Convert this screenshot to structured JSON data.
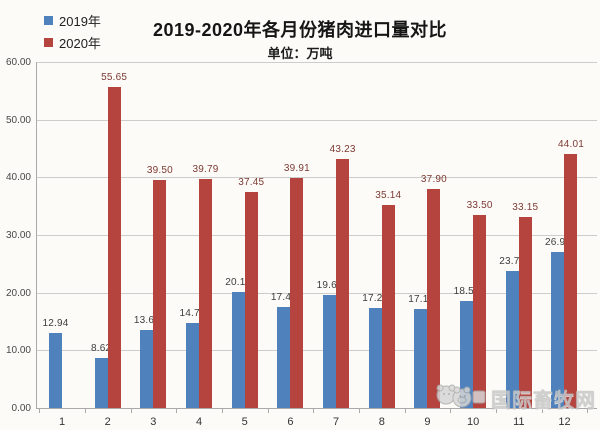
{
  "header": {
    "title": "2019-2020年各月份猪肉进口量对比",
    "subtitle": "单位：万吨"
  },
  "legend": {
    "items": [
      {
        "label": "2019年",
        "color": "#4f81bd"
      },
      {
        "label": "2020年",
        "color": "#b5443f"
      }
    ]
  },
  "watermark": {
    "text": "国际畜牧网"
  },
  "chart_data": {
    "type": "bar",
    "title": "2019-2020年各月份猪肉进口量对比",
    "unit_label": "单位：万吨",
    "categories": [
      "1",
      "2",
      "3",
      "4",
      "5",
      "6",
      "7",
      "8",
      "9",
      "10",
      "11",
      "12"
    ],
    "series": [
      {
        "name": "2019年",
        "color": "#4f81bd",
        "label_color": "#3d3d3d",
        "values": [
          12.94,
          8.62,
          13.6,
          14.74,
          20.12,
          17.47,
          19.63,
          17.26,
          17.11,
          18.56,
          23.79,
          26.98
        ]
      },
      {
        "name": "2020年",
        "color": "#b5443f",
        "label_color": "#7d3a33",
        "values": [
          null,
          55.65,
          39.5,
          39.79,
          37.45,
          39.91,
          43.23,
          35.14,
          37.9,
          33.5,
          33.15,
          44.01
        ]
      }
    ],
    "ylim": [
      0,
      60
    ],
    "ytick_step": 10,
    "yticks": [
      "60.00",
      "50.00",
      "40.00",
      "30.00",
      "20.00",
      "10.00",
      "0.00"
    ],
    "grid": true,
    "legend_position": "top-left",
    "xlabel": "",
    "ylabel": ""
  }
}
